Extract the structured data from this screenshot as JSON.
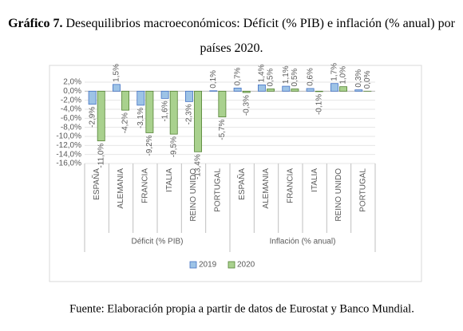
{
  "chart_data": {
    "type": "bar",
    "title_label": "Gráfico 7.",
    "title": "Desequilibrios macroeconómicos: Déficit (% PIB) e inflación (% anual) por países 2020.",
    "source": "Fuente: Elaboración propia a partir de datos de Eurostat y Banco Mundial.",
    "groups": [
      {
        "name": "Déficit (% PIB)",
        "categories": [
          "ESPAÑA",
          "ALEMANIA",
          "FRANCIA",
          "ITALIA",
          "REINO UNIDO",
          "PORTUGAL"
        ]
      },
      {
        "name": "Inflación (% anual)",
        "categories": [
          "ESPAÑA",
          "ALEMANIA",
          "FRANCIA",
          "ITALIA",
          "REINO UNIDO",
          "PORTUGAL"
        ]
      }
    ],
    "series": [
      {
        "name": "2019",
        "color": "#9dc3e6",
        "stroke": "#4472c4",
        "values": [
          -2.9,
          1.5,
          -3.1,
          -1.6,
          -2.3,
          0.1,
          0.7,
          1.4,
          1.1,
          0.6,
          1.7,
          0.3
        ],
        "value_labels": [
          "-2,9%",
          "1,5%",
          "-3,1%",
          "-1,6%",
          "-2,3%",
          "0,1%",
          "0,7%",
          "1,4%",
          "1,1%",
          "0,6%",
          "1,7%",
          "0,3%"
        ]
      },
      {
        "name": "2020",
        "color": "#a9d18e",
        "stroke": "#548235",
        "values": [
          -11.0,
          -4.2,
          -9.2,
          -9.5,
          -13.4,
          -5.7,
          -0.3,
          0.5,
          0.5,
          -0.1,
          1.0,
          0.0
        ],
        "value_labels": [
          "-11,0%",
          "-4,2%",
          "-9,2%",
          "-9,5%",
          "-13,4%",
          "-5,7%",
          "-0,3%",
          "0,5%",
          "0,5%",
          "-0,1%",
          "1,0%",
          "0,0%"
        ]
      }
    ],
    "ylim": [
      -16,
      2
    ],
    "yticks": [
      {
        "value": 2,
        "label": "2,0%"
      },
      {
        "value": 0,
        "label": "0,0%"
      },
      {
        "value": -2,
        "label": "-2,0%"
      },
      {
        "value": -4,
        "label": "-4,0%"
      },
      {
        "value": -6,
        "label": "-6,0%"
      },
      {
        "value": -8,
        "label": "-8,0%"
      },
      {
        "value": -10,
        "label": "-10,0%"
      },
      {
        "value": -12,
        "label": "-12,0%"
      },
      {
        "value": -14,
        "label": "-14,0%"
      },
      {
        "value": -16,
        "label": "-16,0%"
      }
    ],
    "grid": true,
    "legend": "bottom"
  }
}
